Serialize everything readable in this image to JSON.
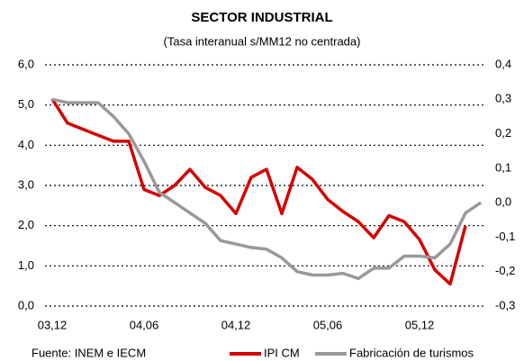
{
  "chart_data": {
    "type": "line",
    "title": "SECTOR INDUSTRIAL",
    "subtitle": "(Tasa interanual s/MM12 no centrada)",
    "source": "Fuente: INEM e IECM",
    "categories": [
      "03,12",
      null,
      null,
      null,
      null,
      null,
      "04,06",
      null,
      null,
      null,
      null,
      null,
      "04,12",
      null,
      null,
      null,
      null,
      null,
      "05,06",
      null,
      null,
      null,
      null,
      null,
      "05,12",
      null,
      null,
      null,
      null
    ],
    "series": [
      {
        "name": "IPI CM",
        "color": "#d40000",
        "axis": "y",
        "values": [
          5.15,
          4.55,
          4.4,
          4.25,
          4.1,
          4.1,
          2.9,
          2.75,
          3.0,
          3.4,
          2.95,
          2.75,
          2.3,
          3.2,
          3.4,
          2.3,
          3.45,
          3.15,
          2.65,
          2.35,
          2.1,
          1.7,
          2.25,
          2.1,
          1.65,
          0.9,
          0.55,
          2.0,
          null
        ]
      },
      {
        "name": "Fabricación de turismos",
        "color": "#999999",
        "axis": "y2",
        "values": [
          0.3,
          0.29,
          0.29,
          0.29,
          0.25,
          0.2,
          0.12,
          0.03,
          0.0,
          -0.03,
          -0.06,
          -0.11,
          -0.12,
          -0.13,
          -0.135,
          -0.16,
          -0.2,
          -0.21,
          -0.21,
          -0.205,
          -0.22,
          -0.19,
          -0.19,
          -0.155,
          -0.155,
          -0.16,
          -0.12,
          -0.03,
          0.0
        ]
      }
    ],
    "ylim": [
      0,
      6
    ],
    "yticks": [
      {
        "value": 0,
        "label": "0,0"
      },
      {
        "value": 1,
        "label": "1,0"
      },
      {
        "value": 2,
        "label": "2,0"
      },
      {
        "value": 3,
        "label": "3,0"
      },
      {
        "value": 4,
        "label": "4,0"
      },
      {
        "value": 5,
        "label": "5,0"
      },
      {
        "value": 6,
        "label": "6,0"
      }
    ],
    "y2lim": [
      -0.3,
      0.4
    ],
    "y2ticks": [
      {
        "value": -0.3,
        "label": "-0,3"
      },
      {
        "value": -0.2,
        "label": "-0,2"
      },
      {
        "value": -0.1,
        "label": "-0,1"
      },
      {
        "value": 0,
        "label": "0,0"
      },
      {
        "value": 0.1,
        "label": "0,1"
      },
      {
        "value": 0.2,
        "label": "0,2"
      },
      {
        "value": 0.3,
        "label": "0,3"
      },
      {
        "value": 0.4,
        "label": "0,4"
      }
    ],
    "grid": true,
    "legend": "bottom"
  }
}
